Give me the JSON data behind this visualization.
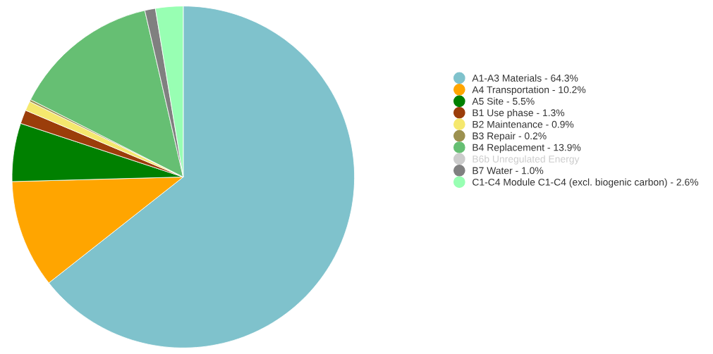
{
  "chart_data": {
    "type": "pie",
    "categories": [
      "A1-A3 Materials - 64.3%",
      "A4 Transportation - 10.2%",
      "A5 Site - 5.5%",
      "B1 Use phase - 1.3%",
      "B2 Maintenance - 0.9%",
      "B3 Repair - 0.2%",
      "B4 Replacement - 13.9%",
      "B6b Unregulated Energy",
      "B7 Water - 1.0%",
      "C1-C4 Module C1-C4 (excl. biogenic carbon) - 2.6%"
    ],
    "values": [
      64.3,
      10.2,
      5.5,
      1.3,
      0.9,
      0.2,
      13.9,
      null,
      1.0,
      2.6
    ],
    "colors": [
      "#7fc2cc",
      "#ffa500",
      "#008000",
      "#9b3d0a",
      "#f5e86e",
      "#9c9150",
      "#66bf73",
      "#cccccc",
      "#808080",
      "#98ffb3"
    ],
    "legend": "right"
  }
}
